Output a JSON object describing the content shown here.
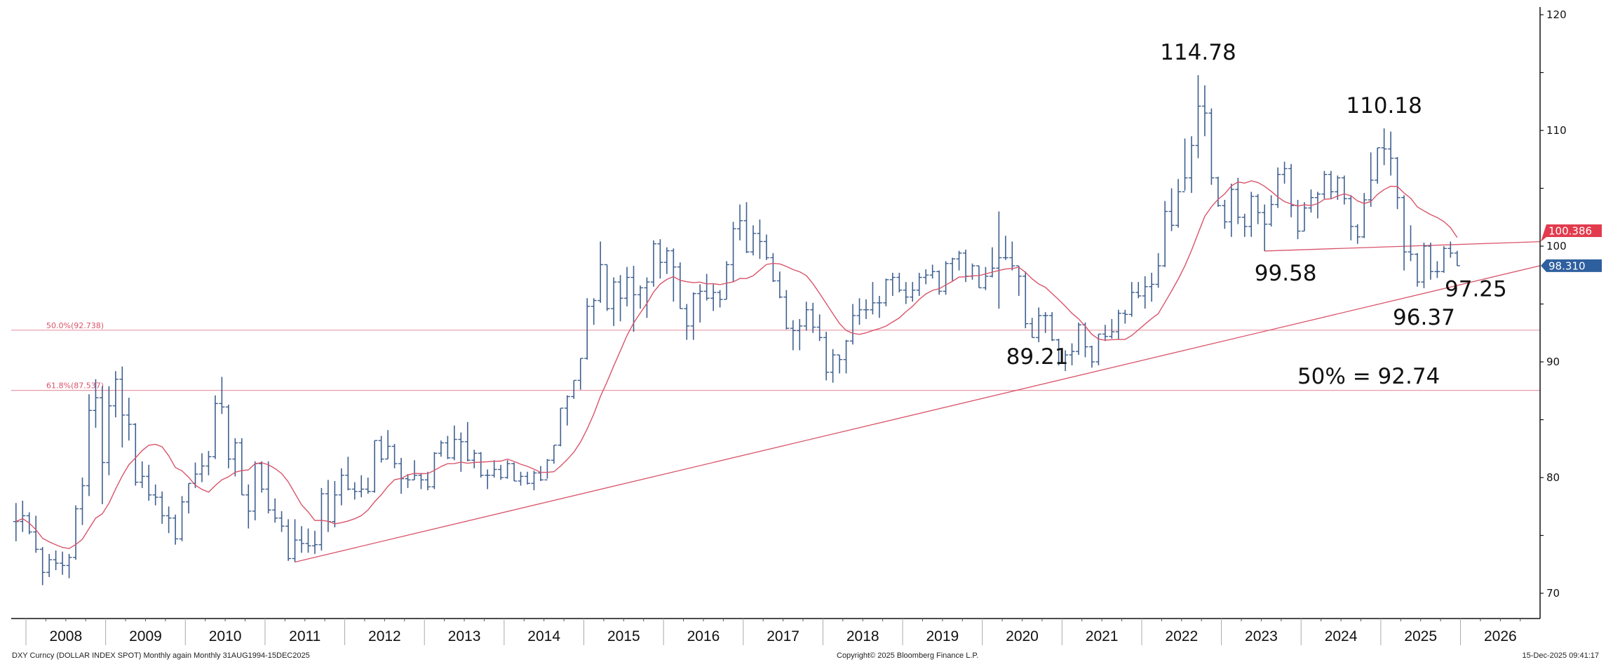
{
  "chart_data": {
    "type": "ohlc-bar",
    "ticker": "DXY Curncy",
    "frequency": "monthly",
    "start": "2007-11",
    "columns": [
      "high",
      "low",
      "close"
    ],
    "rows": [
      [
        77.8,
        74.5,
        76.2
      ],
      [
        78.0,
        75.3,
        76.7
      ],
      [
        77.0,
        75.1,
        75.3
      ],
      [
        76.7,
        73.5,
        73.8
      ],
      [
        74.0,
        70.7,
        71.8
      ],
      [
        73.4,
        71.4,
        72.9
      ],
      [
        73.7,
        72.0,
        72.6
      ],
      [
        73.6,
        71.6,
        72.4
      ],
      [
        73.4,
        71.3,
        73.1
      ],
      [
        77.6,
        72.9,
        77.3
      ],
      [
        80.0,
        75.9,
        79.3
      ],
      [
        87.2,
        78.4,
        85.8
      ],
      [
        88.5,
        84.3,
        86.9
      ],
      [
        87.9,
        77.7,
        81.3
      ],
      [
        87.9,
        80.2,
        86.2
      ],
      [
        89.2,
        85.2,
        88.5
      ],
      [
        89.6,
        82.6,
        85.4
      ],
      [
        86.9,
        83.2,
        84.6
      ],
      [
        84.7,
        79.3,
        79.6
      ],
      [
        81.4,
        79.1,
        80.1
      ],
      [
        81.1,
        78.0,
        78.5
      ],
      [
        79.4,
        77.6,
        78.3
      ],
      [
        78.8,
        76.0,
        76.7
      ],
      [
        77.5,
        75.2,
        76.5
      ],
      [
        76.8,
        74.2,
        74.7
      ],
      [
        78.4,
        74.5,
        77.9
      ],
      [
        79.5,
        76.9,
        79.5
      ],
      [
        81.3,
        79.1,
        80.3
      ],
      [
        82.1,
        79.6,
        81.0
      ],
      [
        82.3,
        80.2,
        81.8
      ],
      [
        87.1,
        81.6,
        86.4
      ],
      [
        88.7,
        85.5,
        86.1
      ],
      [
        86.3,
        80.8,
        81.6
      ],
      [
        83.4,
        80.1,
        83.0
      ],
      [
        83.4,
        78.5,
        78.5
      ],
      [
        79.4,
        75.6,
        77.1
      ],
      [
        81.4,
        76.3,
        81.2
      ],
      [
        81.4,
        78.7,
        79.0
      ],
      [
        81.4,
        76.9,
        77.2
      ],
      [
        78.2,
        76.1,
        76.5
      ],
      [
        77.1,
        75.3,
        75.8
      ],
      [
        76.4,
        72.8,
        73.0
      ],
      [
        76.4,
        72.7,
        74.6
      ],
      [
        75.8,
        73.5,
        74.3
      ],
      [
        75.6,
        73.5,
        74.1
      ],
      [
        75.4,
        73.4,
        74.2
      ],
      [
        79.1,
        73.7,
        78.6
      ],
      [
        79.8,
        75.3,
        76.2
      ],
      [
        79.7,
        75.7,
        78.5
      ],
      [
        80.8,
        77.6,
        80.2
      ],
      [
        81.8,
        78.9,
        79.0
      ],
      [
        79.6,
        78.1,
        78.8
      ],
      [
        80.2,
        78.3,
        79.0
      ],
      [
        80.0,
        78.6,
        78.8
      ],
      [
        83.2,
        78.7,
        83.2
      ],
      [
        83.6,
        81.3,
        81.6
      ],
      [
        84.1,
        81.6,
        82.7
      ],
      [
        82.9,
        80.8,
        81.2
      ],
      [
        81.7,
        78.6,
        79.9
      ],
      [
        80.3,
        79.1,
        79.8
      ],
      [
        81.5,
        79.8,
        80.2
      ],
      [
        80.4,
        79.0,
        79.8
      ],
      [
        80.5,
        78.9,
        79.2
      ],
      [
        82.2,
        79.0,
        82.1
      ],
      [
        83.2,
        81.8,
        83.0
      ],
      [
        83.6,
        81.6,
        81.7
      ],
      [
        84.5,
        81.5,
        83.3
      ],
      [
        83.9,
        80.5,
        83.1
      ],
      [
        84.8,
        81.4,
        81.5
      ],
      [
        82.4,
        80.8,
        82.1
      ],
      [
        82.2,
        80.0,
        80.2
      ],
      [
        80.7,
        79.0,
        80.2
      ],
      [
        81.5,
        80.0,
        80.7
      ],
      [
        81.1,
        79.8,
        80.0
      ],
      [
        81.5,
        79.9,
        81.2
      ],
      [
        81.3,
        79.7,
        79.7
      ],
      [
        80.5,
        79.3,
        80.1
      ],
      [
        80.5,
        79.4,
        79.5
      ],
      [
        80.6,
        78.9,
        80.4
      ],
      [
        81.0,
        79.7,
        79.8
      ],
      [
        81.6,
        79.9,
        81.5
      ],
      [
        82.8,
        81.2,
        82.8
      ],
      [
        86.0,
        82.7,
        86.0
      ],
      [
        87.1,
        84.5,
        87.0
      ],
      [
        88.4,
        86.8,
        88.4
      ],
      [
        90.3,
        87.6,
        90.3
      ],
      [
        95.5,
        90.2,
        94.8
      ],
      [
        95.5,
        93.2,
        95.3
      ],
      [
        100.4,
        95.1,
        98.4
      ],
      [
        98.4,
        94.4,
        94.6
      ],
      [
        97.3,
        93.1,
        96.9
      ],
      [
        97.5,
        93.5,
        95.5
      ],
      [
        98.2,
        94.8,
        97.3
      ],
      [
        98.3,
        92.6,
        95.8
      ],
      [
        96.6,
        94.6,
        96.4
      ],
      [
        97.3,
        93.8,
        96.9
      ],
      [
        100.5,
        96.5,
        100.2
      ],
      [
        100.6,
        97.2,
        98.6
      ],
      [
        99.9,
        97.6,
        99.6
      ],
      [
        99.8,
        95.2,
        98.2
      ],
      [
        98.6,
        94.6,
        94.6
      ],
      [
        95.0,
        91.9,
        93.1
      ],
      [
        96.0,
        91.9,
        95.9
      ],
      [
        96.7,
        93.4,
        96.1
      ],
      [
        97.6,
        95.3,
        95.5
      ],
      [
        96.7,
        94.4,
        96.0
      ],
      [
        96.2,
        94.7,
        95.4
      ],
      [
        98.7,
        95.4,
        98.4
      ],
      [
        102.1,
        96.9,
        101.5
      ],
      [
        103.6,
        100.5,
        102.2
      ],
      [
        103.8,
        99.4,
        99.5
      ],
      [
        101.8,
        99.2,
        101.1
      ],
      [
        102.3,
        98.9,
        100.4
      ],
      [
        101.0,
        98.8,
        99.0
      ],
      [
        99.4,
        96.9,
        97.0
      ],
      [
        97.8,
        95.5,
        95.6
      ],
      [
        96.2,
        92.8,
        92.9
      ],
      [
        93.6,
        91.0,
        92.7
      ],
      [
        93.7,
        91.0,
        93.1
      ],
      [
        95.2,
        92.7,
        94.5
      ],
      [
        95.1,
        92.5,
        93.0
      ],
      [
        94.1,
        91.8,
        92.1
      ],
      [
        92.6,
        88.4,
        89.1
      ],
      [
        91.1,
        88.2,
        90.6
      ],
      [
        90.6,
        89.0,
        90.2
      ],
      [
        91.9,
        89.0,
        91.8
      ],
      [
        95.0,
        91.5,
        94.0
      ],
      [
        95.5,
        93.2,
        94.5
      ],
      [
        95.4,
        93.7,
        94.5
      ],
      [
        96.9,
        94.1,
        95.1
      ],
      [
        95.7,
        93.8,
        95.1
      ],
      [
        97.2,
        94.8,
        97.1
      ],
      [
        97.7,
        95.7,
        97.3
      ],
      [
        97.7,
        96.0,
        96.2
      ],
      [
        96.9,
        95.0,
        95.6
      ],
      [
        96.9,
        95.2,
        96.2
      ],
      [
        97.7,
        95.7,
        97.3
      ],
      [
        98.0,
        96.7,
        97.5
      ],
      [
        98.4,
        97.2,
        97.8
      ],
      [
        97.9,
        95.8,
        96.1
      ],
      [
        98.7,
        95.8,
        98.5
      ],
      [
        99.0,
        97.0,
        98.9
      ],
      [
        99.6,
        97.9,
        99.4
      ],
      [
        99.7,
        96.9,
        97.4
      ],
      [
        98.5,
        97.1,
        98.3
      ],
      [
        98.3,
        96.4,
        96.4
      ],
      [
        98.2,
        96.2,
        97.4
      ],
      [
        99.9,
        97.3,
        98.1
      ],
      [
        103.0,
        94.6,
        99.0
      ],
      [
        100.9,
        98.8,
        99.0
      ],
      [
        100.4,
        97.9,
        98.3
      ],
      [
        98.3,
        95.7,
        97.4
      ],
      [
        97.8,
        92.9,
        93.3
      ],
      [
        93.8,
        92.1,
        92.1
      ],
      [
        94.7,
        91.7,
        94.0
      ],
      [
        94.3,
        92.5,
        94.0
      ],
      [
        94.3,
        91.8,
        91.9
      ],
      [
        92.0,
        89.7,
        89.9
      ],
      [
        91.0,
        89.21,
        90.6
      ],
      [
        91.6,
        89.7,
        90.9
      ],
      [
        93.4,
        90.6,
        93.2
      ],
      [
        93.4,
        90.4,
        91.3
      ],
      [
        91.4,
        89.5,
        90.0
      ],
      [
        92.4,
        89.7,
        92.4
      ],
      [
        93.2,
        91.8,
        92.2
      ],
      [
        93.7,
        92.0,
        92.6
      ],
      [
        94.5,
        91.9,
        94.2
      ],
      [
        94.5,
        93.3,
        94.1
      ],
      [
        96.9,
        93.9,
        96.0
      ],
      [
        96.9,
        95.5,
        95.7
      ],
      [
        97.4,
        94.6,
        96.5
      ],
      [
        97.7,
        95.2,
        96.7
      ],
      [
        99.4,
        96.4,
        98.3
      ],
      [
        103.9,
        98.2,
        103.0
      ],
      [
        105.0,
        101.3,
        101.8
      ],
      [
        105.8,
        101.6,
        104.7
      ],
      [
        109.3,
        104.8,
        105.9
      ],
      [
        109.5,
        104.6,
        108.7
      ],
      [
        114.78,
        107.6,
        112.1
      ],
      [
        113.9,
        109.5,
        111.5
      ],
      [
        111.9,
        105.3,
        105.9
      ],
      [
        106.0,
        103.4,
        103.5
      ],
      [
        104.0,
        101.5,
        102.1
      ],
      [
        105.4,
        100.8,
        104.9
      ],
      [
        105.9,
        101.9,
        102.5
      ],
      [
        102.8,
        100.8,
        101.7
      ],
      [
        104.7,
        100.8,
        104.3
      ],
      [
        104.5,
        101.9,
        102.9
      ],
      [
        103.6,
        99.58,
        101.9
      ],
      [
        104.4,
        101.7,
        103.6
      ],
      [
        106.8,
        103.3,
        106.2
      ],
      [
        107.3,
        105.4,
        106.7
      ],
      [
        107.1,
        102.5,
        103.5
      ],
      [
        104.0,
        100.6,
        101.3
      ],
      [
        103.8,
        101.3,
        103.3
      ],
      [
        104.9,
        102.9,
        104.2
      ],
      [
        104.7,
        102.4,
        104.5
      ],
      [
        106.5,
        104.1,
        106.2
      ],
      [
        106.5,
        104.1,
        104.7
      ],
      [
        106.1,
        104.0,
        105.9
      ],
      [
        106.1,
        103.6,
        104.1
      ],
      [
        104.4,
        100.5,
        101.7
      ],
      [
        101.9,
        100.2,
        100.8
      ],
      [
        104.6,
        100.7,
        104.0
      ],
      [
        108.1,
        103.4,
        105.7
      ],
      [
        108.5,
        105.4,
        108.5
      ],
      [
        110.18,
        107.0,
        108.4
      ],
      [
        109.9,
        106.1,
        107.6
      ],
      [
        107.7,
        103.2,
        104.2
      ],
      [
        104.4,
        97.9,
        99.5
      ],
      [
        101.8,
        98.7,
        99.3
      ],
      [
        99.4,
        96.5,
        96.9
      ],
      [
        100.3,
        96.37,
        100.0
      ],
      [
        100.3,
        97.1,
        97.8
      ],
      [
        98.7,
        97.25,
        97.8
      ],
      [
        100.0,
        97.7,
        99.8
      ],
      [
        100.4,
        99.0,
        99.4
      ],
      [
        99.6,
        98.3,
        98.31
      ]
    ],
    "moving_average_period": 12,
    "y_axis": {
      "range": [
        67.5,
        121
      ],
      "ticks": [
        70,
        80,
        90,
        100,
        110,
        120
      ],
      "side": "right"
    },
    "x_axis": {
      "ticks": [
        "2008",
        "2009",
        "2010",
        "2011",
        "2012",
        "2013",
        "2014",
        "2015",
        "2016",
        "2017",
        "2018",
        "2019",
        "2020",
        "2021",
        "2022",
        "2023",
        "2024",
        "2025",
        "2026"
      ]
    },
    "grid": false,
    "fib_levels": [
      {
        "label": "50.0%(92.738)",
        "value": 92.738
      },
      {
        "label": "61.8%(87.537)",
        "value": 87.537
      }
    ],
    "trendlines": [
      {
        "from": [
          "2011-05",
          72.7
        ],
        "to_value_at_edge": 98.31
      },
      {
        "from": [
          "2023-07",
          99.58
        ],
        "to_value_at_edge": 100.386
      }
    ],
    "price_tags": [
      {
        "label": "100.386",
        "value": 100.386,
        "color": "#e23b4e"
      },
      {
        "label": "98.310",
        "value": 98.31,
        "color": "#2e5f9e"
      }
    ],
    "annotations": [
      {
        "text": "114.78",
        "month": "2022-09",
        "value": 114.78
      },
      {
        "text": "110.18",
        "month": "2025-01",
        "value": 110.18
      },
      {
        "text": "99.58",
        "month": "2023-07",
        "value": 99.58
      },
      {
        "text": "96.37",
        "month": "2025-07",
        "value": 96.37
      },
      {
        "text": "97.25",
        "month": "2025-09",
        "value": 97.25
      },
      {
        "text": "89.21",
        "month": "2021-01",
        "value": 89.21
      },
      {
        "text": "50% = 92.74",
        "month": "2025-01",
        "value": 92.74
      }
    ],
    "colors": {
      "bars": "#3f5f8f",
      "moving_average": "#d9546a",
      "trendline": "#d9546a",
      "fib": "#e89aa6"
    }
  },
  "footer": {
    "left": "DXY Curncy (DOLLAR INDEX SPOT) Monthly again Monthly 31AUG1994-15DEC2025",
    "center": "Copyright© 2025 Bloomberg Finance L.P.",
    "right": "15-Dec-2025 09:41:17"
  }
}
